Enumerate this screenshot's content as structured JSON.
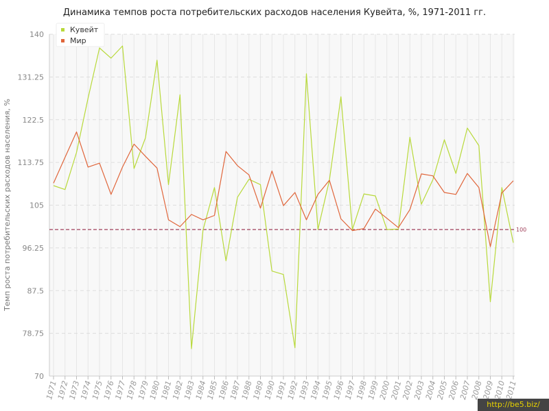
{
  "chart_data": {
    "type": "line",
    "title": "Динамика темпов роста потребительских расходов населения Кувейта, %, 1971-2011 гг.",
    "xlabel": "",
    "ylabel": "Темп роста потребительских расходов населения, %",
    "ylim": [
      70,
      140
    ],
    "yticks": [
      "70",
      "78.75",
      "87.5",
      "96.25",
      "105",
      "113.75",
      "122.5",
      "131.25",
      "140"
    ],
    "reference_line": {
      "value": 100,
      "label": "100"
    },
    "legend_position": "top-left",
    "grid": true,
    "x": [
      "1971",
      "1972",
      "1973",
      "1974",
      "1975",
      "1976",
      "1977",
      "1978",
      "1979",
      "1980",
      "1981",
      "1982",
      "1983",
      "1984",
      "1985",
      "1986",
      "1987",
      "1988",
      "1989",
      "1990",
      "1991",
      "1992",
      "1993",
      "1994",
      "1995",
      "1996",
      "1997",
      "1998",
      "1999",
      "2000",
      "2001",
      "2002",
      "2003",
      "2004",
      "2005",
      "2006",
      "2007",
      "2008",
      "2009",
      "2010",
      "2011"
    ],
    "series": [
      {
        "name": "Кувейт",
        "color": "#b8d93a",
        "values": [
          109.0,
          108.2,
          115.8,
          126.9,
          137.2,
          135.1,
          137.6,
          112.5,
          118.8,
          134.7,
          109.2,
          127.6,
          75.6,
          99.9,
          108.6,
          93.6,
          106.6,
          110.3,
          109.2,
          91.5,
          90.8,
          75.8,
          131.9,
          100.0,
          110.1,
          127.2,
          100.0,
          107.3,
          106.9,
          100.0,
          100.1,
          118.9,
          105.2,
          110.2,
          118.4,
          111.5,
          120.8,
          117.2,
          85.2,
          108.6,
          97.3
        ]
      },
      {
        "name": "Мир",
        "color": "#e0653a",
        "values": [
          109.5,
          114.8,
          120.0,
          112.8,
          113.6,
          107.2,
          112.8,
          117.5,
          115.0,
          112.6,
          102.0,
          100.6,
          103.1,
          102.0,
          102.9,
          116.0,
          113.1,
          111.2,
          104.4,
          112.0,
          104.9,
          107.6,
          102.0,
          107.2,
          110.1,
          102.2,
          99.8,
          100.2,
          104.2,
          102.3,
          100.4,
          104.1,
          111.4,
          111.0,
          107.6,
          107.2,
          111.5,
          108.6,
          96.5,
          107.5,
          110.0
        ]
      }
    ]
  },
  "watermark": "http://be5.biz/"
}
